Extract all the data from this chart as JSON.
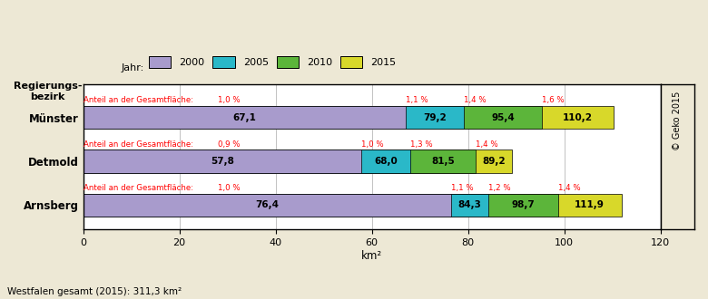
{
  "regions": [
    "Münster",
    "Detmold",
    "Arnsberg"
  ],
  "years": [
    2000,
    2005,
    2010,
    2015
  ],
  "colors": [
    "#a89bcc",
    "#2ab8c8",
    "#5cb53a",
    "#d8d82a"
  ],
  "values": {
    "Münster": [
      67.1,
      79.2,
      95.4,
      110.2
    ],
    "Detmold": [
      57.8,
      68.0,
      81.5,
      89.2
    ],
    "Arnsberg": [
      76.4,
      84.3,
      98.7,
      111.9
    ]
  },
  "percentages": {
    "Münster": [
      "1,0 %",
      "1,1 %",
      "1,4 %",
      "1,6 %"
    ],
    "Detmold": [
      "0,9 %",
      "1,0 %",
      "1,3 %",
      "1,4 %"
    ],
    "Arnsberg": [
      "1,0 %",
      "1,1 %",
      "1,2 %",
      "1,4 %"
    ]
  },
  "pct_x_positions": {
    "Münster": [
      28,
      67.1,
      79.2,
      95.4
    ],
    "Detmold": [
      28,
      57.8,
      68.0,
      81.5
    ],
    "Arnsberg": [
      28,
      76.4,
      84.3,
      98.7
    ]
  },
  "xlabel": "km²",
  "xlim": [
    0,
    120
  ],
  "xticks": [
    0,
    20,
    40,
    60,
    80,
    100,
    120
  ],
  "footnote": "Westfalen gesamt (2015): 311,3 km²",
  "bg_color": "#ede8d5",
  "plot_bg_color": "#ffffff",
  "bar_height": 0.52,
  "label_anteil": "Anteil an der Gesamtfläche:",
  "copyright": "© Geko 2015",
  "title_y_label": "Regierungs-\nbezirk"
}
